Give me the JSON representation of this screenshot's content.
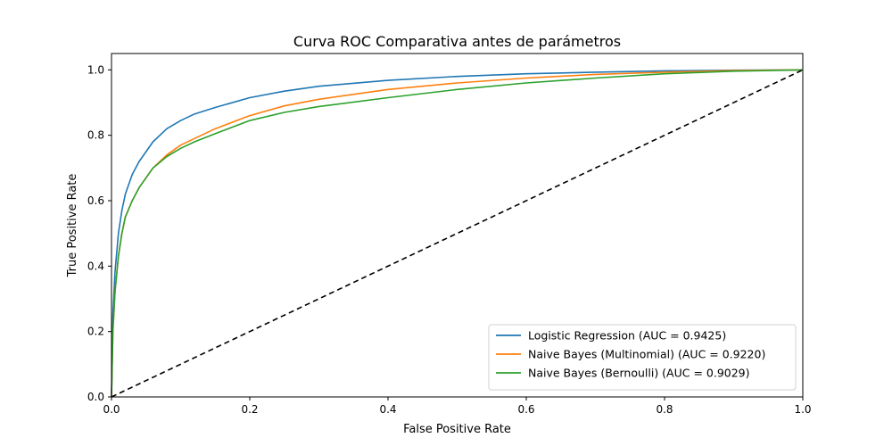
{
  "chart_data": {
    "type": "line",
    "title": "Curva ROC Comparativa antes de parámetros",
    "xlabel": "False Positive Rate",
    "ylabel": "True Positive Rate",
    "xlim": [
      0,
      1
    ],
    "ylim": [
      0,
      1.05
    ],
    "xticks": [
      0.0,
      0.2,
      0.4,
      0.6,
      0.8,
      1.0
    ],
    "xtick_labels": [
      "0.0",
      "0.2",
      "0.4",
      "0.6",
      "0.8",
      "1.0"
    ],
    "yticks": [
      0.0,
      0.2,
      0.4,
      0.6,
      0.8,
      1.0
    ],
    "ytick_labels": [
      "0.0",
      "0.2",
      "0.4",
      "0.6",
      "0.8",
      "1.0"
    ],
    "grid": false,
    "legend_position": "lower-right",
    "series": [
      {
        "name": "Logistic Regression (AUC = 0.9425)",
        "color": "#1f77b4",
        "x": [
          0,
          0.002,
          0.005,
          0.01,
          0.015,
          0.02,
          0.03,
          0.04,
          0.05,
          0.06,
          0.08,
          0.1,
          0.12,
          0.15,
          0.2,
          0.25,
          0.3,
          0.4,
          0.5,
          0.6,
          0.7,
          0.8,
          0.9,
          1.0
        ],
        "y": [
          0,
          0.25,
          0.38,
          0.5,
          0.57,
          0.62,
          0.68,
          0.72,
          0.75,
          0.78,
          0.82,
          0.845,
          0.865,
          0.885,
          0.915,
          0.935,
          0.95,
          0.968,
          0.98,
          0.988,
          0.993,
          0.997,
          0.999,
          1.0
        ]
      },
      {
        "name": "Naive Bayes (Multinomial) (AUC = 0.9220)",
        "color": "#ff7f0e",
        "x": [
          0,
          0.002,
          0.005,
          0.01,
          0.015,
          0.02,
          0.03,
          0.04,
          0.05,
          0.06,
          0.08,
          0.1,
          0.12,
          0.15,
          0.2,
          0.25,
          0.3,
          0.4,
          0.5,
          0.6,
          0.7,
          0.8,
          0.9,
          1.0
        ],
        "y": [
          0,
          0.2,
          0.32,
          0.43,
          0.5,
          0.55,
          0.6,
          0.64,
          0.67,
          0.7,
          0.74,
          0.77,
          0.79,
          0.82,
          0.86,
          0.89,
          0.91,
          0.94,
          0.96,
          0.975,
          0.986,
          0.993,
          0.998,
          1.0
        ]
      },
      {
        "name": "Naive Bayes (Bernoulli) (AUC = 0.9029)",
        "color": "#2ca02c",
        "x": [
          0,
          0.002,
          0.005,
          0.01,
          0.015,
          0.02,
          0.03,
          0.04,
          0.05,
          0.06,
          0.08,
          0.1,
          0.12,
          0.15,
          0.2,
          0.25,
          0.3,
          0.4,
          0.5,
          0.6,
          0.7,
          0.8,
          0.9,
          1.0
        ],
        "y": [
          0,
          0.2,
          0.32,
          0.43,
          0.5,
          0.55,
          0.6,
          0.64,
          0.67,
          0.7,
          0.735,
          0.76,
          0.78,
          0.805,
          0.845,
          0.87,
          0.888,
          0.915,
          0.94,
          0.96,
          0.975,
          0.988,
          0.996,
          1.0
        ]
      },
      {
        "name": "",
        "color": "#000000",
        "dashed": true,
        "x": [
          0,
          1
        ],
        "y": [
          0,
          1
        ]
      }
    ]
  }
}
